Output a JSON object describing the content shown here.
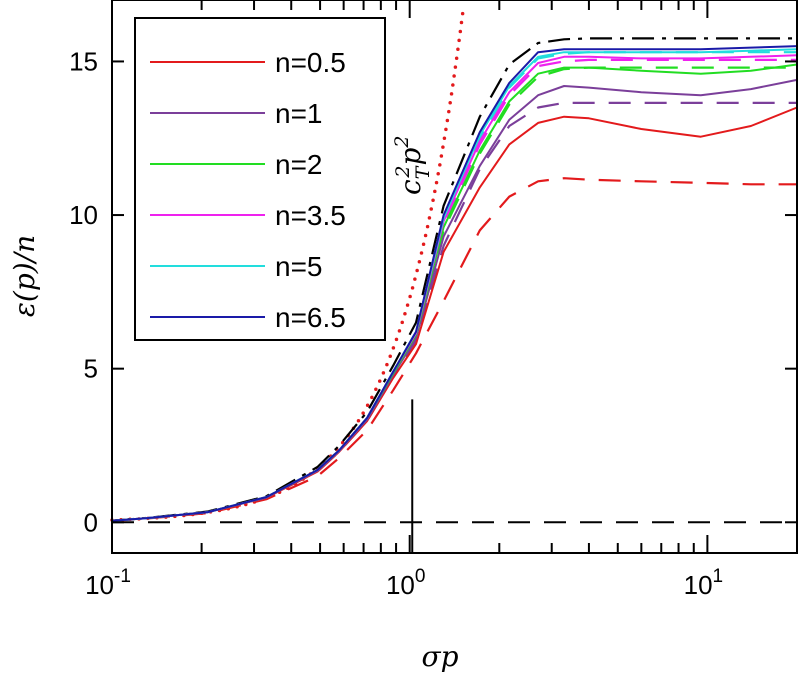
{
  "chart_data": {
    "type": "line",
    "xlabel": "σp",
    "ylabel": "ε(p)/n",
    "xscale": "log",
    "xlim": [
      0.1,
      20
    ],
    "ylim": [
      -1,
      17
    ],
    "grid": false,
    "legend_placement": "top-left",
    "x_ticks": [
      {
        "base": "10",
        "exp": "-1",
        "value": 0.1
      },
      {
        "base": "10",
        "exp": "0",
        "value": 1
      },
      {
        "base": "10",
        "exp": "1",
        "value": 10
      }
    ],
    "y_ticks": [
      "0",
      "5",
      "10",
      "15"
    ],
    "annotation": {
      "text": "c",
      "sub": "T",
      "sup": "2",
      "text2": "p",
      "sup2": "2"
    },
    "x": [
      0.1,
      0.13,
      0.21,
      0.33,
      0.49,
      0.58,
      0.72,
      0.88,
      1.05,
      1.3,
      1.72,
      2.16,
      2.7,
      3.3,
      4,
      6,
      9.5,
      14,
      20
    ],
    "series": [
      {
        "name": "n=0.5",
        "color": "#e31a1c",
        "style": "solid",
        "values": [
          0.05,
          0.13,
          0.33,
          0.8,
          1.65,
          2.3,
          3.3,
          4.7,
          5.8,
          8.8,
          10.9,
          12.3,
          13.0,
          13.2,
          13.15,
          12.8,
          12.55,
          12.9,
          13.5
        ]
      },
      {
        "name": "n=1",
        "color": "#7b3f9a",
        "style": "solid",
        "values": [
          0.05,
          0.13,
          0.33,
          0.81,
          1.68,
          2.32,
          3.35,
          4.8,
          6.0,
          9.3,
          11.6,
          13.1,
          13.9,
          14.2,
          14.15,
          14.0,
          13.9,
          14.1,
          14.4
        ]
      },
      {
        "name": "n=2",
        "color": "#22dd22",
        "style": "solid",
        "values": [
          0.05,
          0.13,
          0.33,
          0.82,
          1.7,
          2.35,
          3.4,
          4.85,
          6.1,
          9.6,
          12.1,
          13.7,
          14.6,
          14.8,
          14.8,
          14.7,
          14.6,
          14.7,
          14.9
        ]
      },
      {
        "name": "n=3.5",
        "color": "#ee22ee",
        "style": "solid",
        "values": [
          0.05,
          0.13,
          0.33,
          0.82,
          1.7,
          2.35,
          3.4,
          4.9,
          6.15,
          9.8,
          12.4,
          14.0,
          14.95,
          15.15,
          15.15,
          15.1,
          15.1,
          15.15,
          15.2
        ]
      },
      {
        "name": "n=5",
        "color": "#22dddd",
        "style": "solid",
        "values": [
          0.05,
          0.13,
          0.33,
          0.82,
          1.7,
          2.35,
          3.4,
          4.9,
          6.2,
          9.9,
          12.6,
          14.2,
          15.15,
          15.3,
          15.3,
          15.3,
          15.3,
          15.35,
          15.4
        ]
      },
      {
        "name": "n=6.5",
        "color": "#1a1aa8",
        "style": "solid",
        "values": [
          0.05,
          0.13,
          0.33,
          0.82,
          1.7,
          2.35,
          3.4,
          4.9,
          6.2,
          10.0,
          12.7,
          14.3,
          15.3,
          15.4,
          15.4,
          15.4,
          15.4,
          15.45,
          15.5
        ]
      },
      {
        "color": "#e31a1c",
        "style": "dashed",
        "values": [
          0.04,
          0.12,
          0.3,
          0.75,
          1.5,
          2.1,
          3.0,
          4.3,
          5.5,
          7.2,
          9.5,
          10.6,
          11.1,
          11.2,
          11.15,
          11.1,
          11.05,
          11.0,
          11.0
        ]
      },
      {
        "color": "#7b3f9a",
        "style": "dashed",
        "values": [
          0.05,
          0.13,
          0.33,
          0.8,
          1.65,
          2.3,
          3.3,
          4.75,
          5.9,
          9.0,
          11.5,
          12.9,
          13.5,
          13.65,
          13.65,
          13.65,
          13.65,
          13.65,
          13.65
        ]
      },
      {
        "color": "#22dd22",
        "style": "dashed",
        "values": [
          0.05,
          0.13,
          0.33,
          0.82,
          1.7,
          2.35,
          3.4,
          4.85,
          6.1,
          9.5,
          12.0,
          13.6,
          14.5,
          14.75,
          14.8,
          14.8,
          14.8,
          14.8,
          14.8
        ]
      },
      {
        "color": "#ee22ee",
        "style": "dashed",
        "values": [
          0.05,
          0.13,
          0.33,
          0.82,
          1.7,
          2.35,
          3.4,
          4.9,
          6.15,
          9.7,
          12.3,
          13.9,
          14.85,
          15.0,
          15.05,
          15.05,
          15.05,
          15.05,
          15.05
        ]
      },
      {
        "color": "#22dddd",
        "style": "dashed",
        "values": [
          0.05,
          0.13,
          0.33,
          0.82,
          1.7,
          2.35,
          3.4,
          4.9,
          6.2,
          9.85,
          12.5,
          14.15,
          15.1,
          15.25,
          15.3,
          15.3,
          15.3,
          15.3,
          15.3
        ]
      },
      {
        "color": "#000000",
        "style": "dashdot",
        "values": [
          0.05,
          0.14,
          0.35,
          0.85,
          1.8,
          2.5,
          3.6,
          5.1,
          6.5,
          10.3,
          13.2,
          14.9,
          15.6,
          15.72,
          15.75,
          15.75,
          15.75,
          15.75,
          15.75
        ]
      }
    ],
    "reference_curve": {
      "color": "#e31a1c",
      "style": "dotted",
      "formula_coefficient": 7.3
    },
    "reference_hline": {
      "y": 0,
      "color": "#000000",
      "style": "dashed"
    },
    "reference_vline": {
      "x": 1.02,
      "y_top": 4,
      "color": "#000000"
    }
  }
}
